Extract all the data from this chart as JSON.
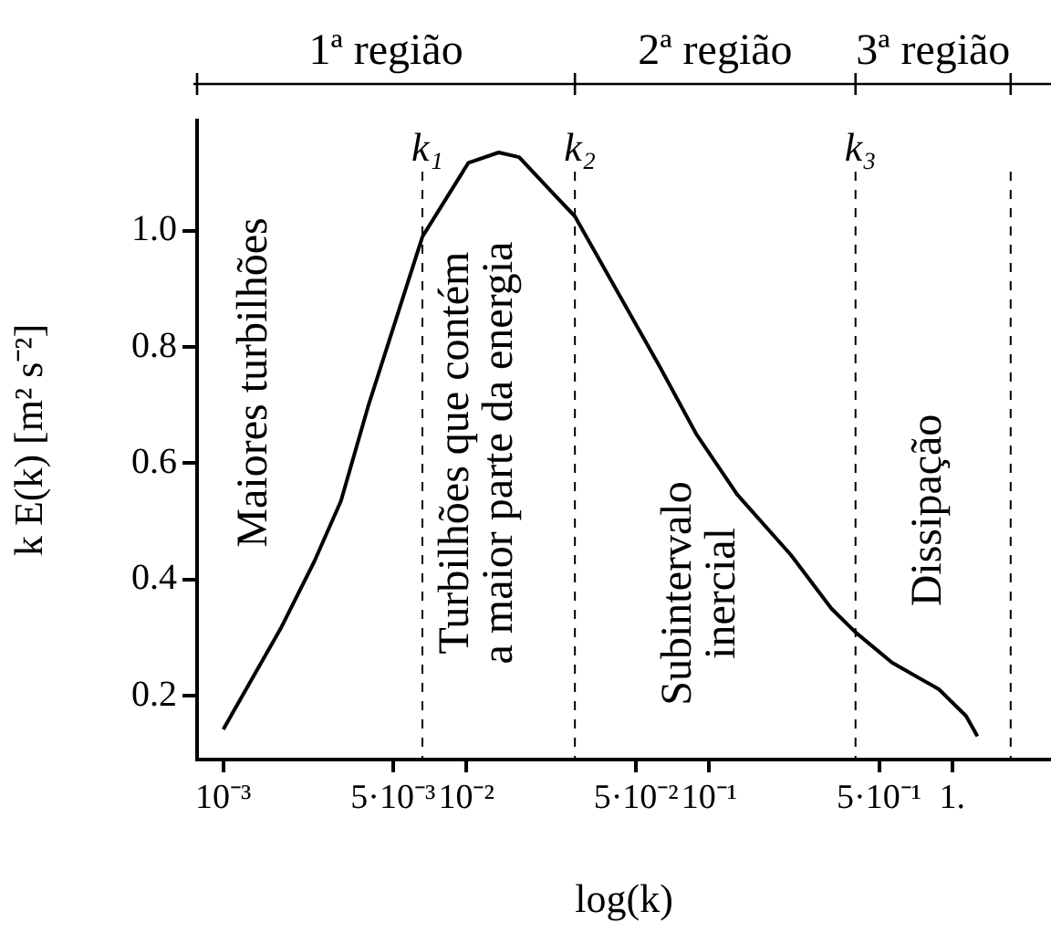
{
  "chart_data": {
    "type": "line",
    "xlabel": "log(k)",
    "ylabel": "k E(k) [m² s⁻²]",
    "log": "x",
    "x": [
      0.001,
      0.00172,
      0.00237,
      0.00305,
      0.00394,
      0.0066,
      0.0102,
      0.0136,
      0.0165,
      0.0233,
      0.028,
      0.0626,
      0.0885,
      0.1305,
      0.217,
      0.318,
      0.4,
      0.565,
      0.881,
      1.14,
      1.27
    ],
    "values": [
      0.142,
      0.315,
      0.431,
      0.535,
      0.697,
      0.99,
      1.117,
      1.135,
      1.127,
      1.06,
      1.025,
      0.766,
      0.65,
      0.546,
      0.442,
      0.35,
      0.309,
      0.257,
      0.211,
      0.165,
      0.13
    ],
    "color": "#000000",
    "xlim": [
      0.00078,
      2.55
    ],
    "xticks": [
      {
        "value": 0.001,
        "label": "10⁻³"
      },
      {
        "value": 0.005,
        "label": "5·10⁻³"
      },
      {
        "value": 0.01,
        "label": "10⁻²"
      },
      {
        "value": 0.05,
        "label": "5·10⁻²"
      },
      {
        "value": 0.1,
        "label": "10⁻¹"
      },
      {
        "value": 0.5,
        "label": "5·10⁻¹"
      },
      {
        "value": 1,
        "label": "1."
      }
    ],
    "ylim": [
      0.09,
      1.19
    ],
    "yticks": [
      0.2,
      0.4,
      0.6,
      0.8,
      {
        "value": 1,
        "label": "1.0"
      }
    ],
    "grid": false,
    "legend": false,
    "ref_lines": [
      {
        "axis": "x",
        "value": 0.0066,
        "label": "k₁",
        "line_style": "dashed"
      },
      {
        "axis": "x",
        "value": 0.028,
        "label": "k₂",
        "line_style": "dashed"
      },
      {
        "axis": "x",
        "value": 0.4,
        "label": "k₃",
        "line_style": "dashed"
      },
      {
        "axis": "x",
        "value": 1.74,
        "label": null,
        "line_style": "dashed"
      }
    ],
    "annotations": [
      "1ª região",
      "2ª região",
      "3ª região",
      "Maiores turbilhões",
      "Turbilhões que contém\na maior parte da energia",
      "Subintervalo\ninercial",
      "Dissipação"
    ]
  }
}
